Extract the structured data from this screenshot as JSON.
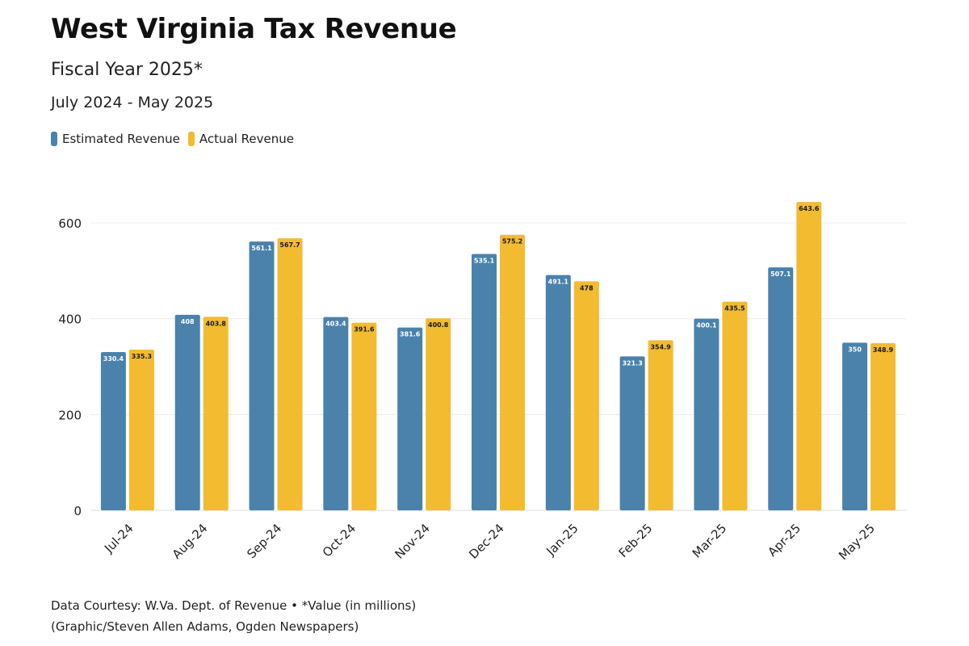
{
  "header": {
    "title": "West Virginia Tax Revenue",
    "subtitle": "Fiscal Year 2025*",
    "period": "July 2024 - May 2025"
  },
  "footer": {
    "line1": "Data Courtesy: W.Va. Dept. of Revenue • *Value (in millions)",
    "line2": "(Graphic/Steven Allen Adams, Ogden Newspapers)"
  },
  "colors": {
    "estimated": "#4a82ac",
    "actual": "#f2bb30",
    "grid": "#ececec"
  },
  "chart_data": {
    "type": "bar",
    "title": "West Virginia Tax Revenue",
    "subtitle": "Fiscal Year 2025*",
    "categories": [
      "Jul-24",
      "Aug-24",
      "Sep-24",
      "Oct-24",
      "Nov-24",
      "Dec-24",
      "Jan-25",
      "Feb-25",
      "Mar-25",
      "Apr-25",
      "May-25"
    ],
    "series": [
      {
        "name": "Estimated Revenue",
        "values": [
          330.4,
          408,
          561.1,
          403.4,
          381.6,
          535.1,
          491.1,
          321.3,
          400.1,
          507.1,
          350
        ],
        "labels": [
          "330.4",
          "408",
          "561.1",
          "403.4",
          "381.6",
          "535.1",
          "491.1",
          "321.3",
          "400.1",
          "507.1",
          "350"
        ]
      },
      {
        "name": "Actual Revenue",
        "values": [
          335.3,
          403.8,
          567.7,
          391.6,
          400.8,
          575.2,
          478,
          354.9,
          435.5,
          643.6,
          348.9
        ],
        "labels": [
          "335.3",
          "403.8",
          "567.7",
          "391.6",
          "400.8",
          "575.2",
          "478",
          "354.9",
          "435.5",
          "643.6",
          "348.9"
        ]
      }
    ],
    "yticks": [
      0,
      200,
      400,
      600
    ],
    "ylim": [
      0,
      650
    ],
    "grid": true,
    "legend": "top-left"
  }
}
